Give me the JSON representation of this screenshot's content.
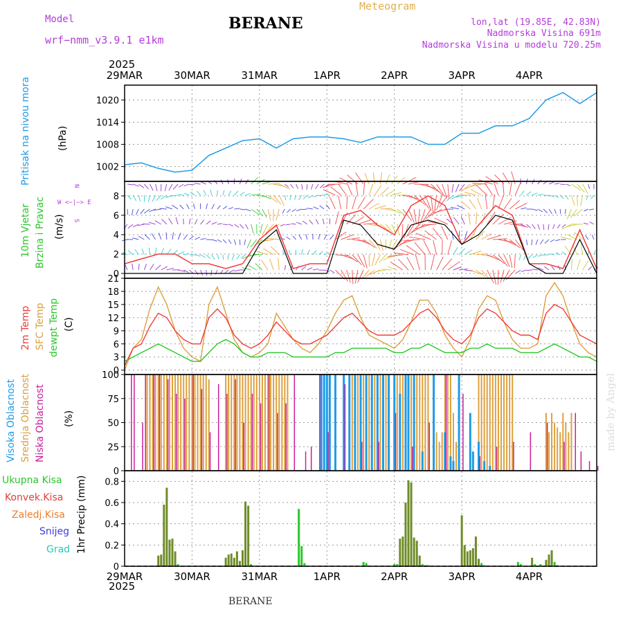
{
  "header": {
    "model_label": "Model",
    "model_name": "wrf−nmm_v3.9.1  e1km",
    "station": "BERANE",
    "meteogram_label": "Meteogram",
    "coords": "lon,lat (19.85E, 42.83N)",
    "elevation": "Nadmorska Visina 691m",
    "model_elevation": "Nadmorska Visina u modelu 720.25m",
    "year_top": "2025",
    "year_bottom": "2025",
    "footer_station": "BERANE",
    "credit": "made by Angel"
  },
  "colors": {
    "pressure": "#1e9be6",
    "t2m": "#f03c3c",
    "tsfc": "#dca03c",
    "dewpt": "#28c828",
    "cloud_high": "#1e9be6",
    "cloud_mid": "#dca03c",
    "cloud_low": "#c81e9b",
    "precip_total": "#28c828",
    "precip_conv": "#e03c3c",
    "precip_frozen": "#f07c28",
    "snow": "#3c3cdc",
    "hail": "#28c8b4",
    "wind_speed": "#000000",
    "wind_gust": "#f03c3c",
    "label_purple": "#b43cdc"
  },
  "panels": {
    "pressure": {
      "labels": [
        "Pritisak na nivou mora"
      ],
      "unit": "(hPa)"
    },
    "wind": {
      "labels": [
        "10m Vjetar",
        "Brzina i Pravac"
      ],
      "unit": "(m/s)",
      "compass_top": "N",
      "compass_mid": "W  <−|−>  E",
      "compass_bottom": "S"
    },
    "temp": {
      "labels": [
        "2m Temp",
        "SFC Temp",
        "dewpt Temp"
      ],
      "unit": "(C)"
    },
    "cloud": {
      "labels": [
        "Visoka Oblacnost",
        "Srednja Oblacnost",
        "Niska Oblacnost"
      ],
      "unit": "(%)"
    },
    "precip": {
      "labels": [
        "Ukupna Kisa",
        "Konvek.Kisa",
        "Zaledj.Kisa",
        "Snijeg",
        "Grad"
      ],
      "unit": "1hr Precip (mm)"
    }
  },
  "chart_data": {
    "type": "line",
    "x_dates": [
      "29MAR",
      "30MAR",
      "31MAR",
      "1APR",
      "2APR",
      "3APR",
      "4APR"
    ],
    "x_unit": "hours from 29MAR 00UTC",
    "pressure": {
      "yticks": [
        1002,
        1008,
        1014,
        1020
      ],
      "ylim": [
        998,
        1024
      ],
      "x": [
        0,
        6,
        12,
        18,
        24,
        30,
        36,
        42,
        48,
        54,
        60,
        66,
        72,
        78,
        84,
        90,
        96,
        102,
        108,
        114,
        120,
        126,
        132,
        138,
        144,
        150,
        156,
        162,
        168
      ],
      "values": [
        1002.5,
        1003,
        1001.5,
        1000.5,
        1001,
        1005,
        1007,
        1009,
        1009.5,
        1007,
        1009.5,
        1010,
        1010,
        1009.5,
        1008.5,
        1010,
        1010,
        1010,
        1008,
        1008,
        1011,
        1011,
        1013,
        1013,
        1015,
        1020,
        1022,
        1019,
        1022
      ]
    },
    "wind": {
      "yticks": [
        0,
        2,
        4,
        6,
        8
      ],
      "ylim": [
        -0.5,
        9.5
      ],
      "x": [
        0,
        6,
        12,
        18,
        24,
        30,
        36,
        42,
        48,
        54,
        60,
        66,
        72,
        78,
        84,
        90,
        96,
        102,
        108,
        114,
        120,
        126,
        132,
        138,
        144,
        150,
        156,
        162,
        168
      ],
      "speed": [
        0,
        0,
        0,
        0,
        0,
        0,
        0,
        0,
        3,
        4.5,
        0,
        0,
        0,
        5.5,
        5,
        3,
        2.5,
        5,
        5.5,
        5,
        3,
        4,
        6,
        5.5,
        1,
        0,
        0,
        3.5,
        0
      ],
      "gust": [
        1,
        1.5,
        2,
        2,
        1,
        1,
        0.5,
        1,
        3.5,
        5,
        0.5,
        1,
        1,
        6,
        6.5,
        5,
        4,
        7,
        8,
        7,
        3,
        5,
        7,
        6,
        1,
        1,
        0.5,
        4.5,
        0.5
      ]
    },
    "temp": {
      "yticks": [
        0,
        3,
        6,
        9,
        12,
        15,
        18,
        21
      ],
      "ylim": [
        -1,
        21
      ],
      "x": [
        0,
        3,
        6,
        9,
        12,
        15,
        18,
        21,
        24,
        27,
        30,
        33,
        36,
        39,
        42,
        45,
        48,
        51,
        54,
        57,
        60,
        63,
        66,
        69,
        72,
        75,
        78,
        81,
        84,
        87,
        90,
        93,
        96,
        99,
        102,
        105,
        108,
        111,
        114,
        117,
        120,
        123,
        126,
        129,
        132,
        135,
        138,
        141,
        144,
        147,
        150,
        153,
        156,
        159,
        162,
        165,
        168
      ],
      "t2m": [
        1,
        5,
        6,
        10,
        13,
        12,
        9,
        7,
        6,
        6,
        12,
        14,
        12,
        8,
        6,
        5,
        6,
        8,
        11,
        9,
        7,
        6,
        6,
        7,
        8,
        10,
        12,
        13,
        11,
        9,
        8,
        8,
        8,
        9,
        11,
        13,
        14,
        12,
        9,
        7,
        6,
        8,
        12,
        14,
        13,
        11,
        9,
        8,
        8,
        7,
        13,
        15,
        14,
        11,
        8,
        7,
        6
      ],
      "sfc": [
        0,
        5,
        7,
        14,
        19,
        15,
        9,
        5,
        3,
        2,
        15,
        19,
        13,
        7,
        4,
        3,
        4,
        6,
        13,
        10,
        7,
        5,
        4,
        6,
        9,
        13,
        16,
        17,
        12,
        8,
        7,
        6,
        5,
        7,
        11,
        16,
        16,
        13,
        8,
        5,
        3,
        7,
        14,
        17,
        16,
        11,
        7,
        5,
        5,
        6,
        17,
        20,
        17,
        11,
        6,
        4,
        3
      ],
      "dewpt": [
        2,
        3,
        4,
        5,
        6,
        5,
        4,
        3,
        2,
        2,
        4,
        6,
        7,
        6,
        4,
        3,
        3,
        4,
        4,
        4,
        3,
        3,
        3,
        3,
        3,
        4,
        4,
        5,
        5,
        5,
        5,
        5,
        4,
        4,
        5,
        5,
        6,
        5,
        4,
        4,
        4,
        5,
        5,
        6,
        5,
        5,
        5,
        4,
        4,
        4,
        5,
        6,
        5,
        4,
        3,
        3,
        2
      ]
    },
    "cloud": {
      "yticks": [
        0,
        25,
        50,
        75,
        100
      ],
      "ylim": [
        0,
        100
      ],
      "low_x": [
        2,
        3,
        6,
        7,
        10,
        12,
        15,
        18,
        21,
        24,
        27,
        30,
        33,
        36,
        39,
        42,
        45,
        48,
        51,
        54,
        57,
        60,
        64,
        66,
        69,
        72,
        78,
        84,
        90,
        96,
        102,
        108,
        114,
        120,
        126,
        132,
        138,
        144,
        150,
        156,
        160,
        162,
        165,
        168
      ],
      "low_v": [
        100,
        100,
        50,
        100,
        100,
        100,
        95,
        80,
        75,
        100,
        85,
        40,
        90,
        80,
        95,
        50,
        80,
        70,
        100,
        60,
        70,
        100,
        20,
        25,
        100,
        40,
        90,
        30,
        30,
        60,
        25,
        50,
        100,
        80,
        15,
        25,
        30,
        40,
        50,
        30,
        60,
        20,
        10,
        5
      ],
      "mid_x": [
        8,
        9,
        10,
        11,
        12,
        13,
        14,
        15,
        16,
        17,
        18,
        19,
        20,
        21,
        22,
        23,
        24,
        25,
        26,
        27,
        28,
        29,
        30,
        36,
        37,
        38,
        39,
        40,
        41,
        42,
        43,
        44,
        45,
        46,
        47,
        48,
        49,
        50,
        51,
        52,
        53,
        54,
        55,
        56,
        57,
        58,
        80,
        81,
        82,
        83,
        84,
        85,
        86,
        87,
        88,
        89,
        90,
        91,
        92,
        93,
        94,
        97,
        98,
        99,
        100,
        101,
        102,
        103,
        104,
        105,
        106,
        107,
        108,
        111,
        112,
        113,
        114,
        115,
        116,
        117,
        118,
        126,
        127,
        128,
        129,
        130,
        131,
        132,
        133,
        134,
        135,
        136,
        137,
        138,
        150,
        151,
        152,
        153,
        154,
        155,
        156,
        157,
        158,
        159
      ],
      "mid_v": [
        100,
        100,
        100,
        100,
        100,
        100,
        100,
        100,
        100,
        100,
        100,
        100,
        100,
        100,
        100,
        100,
        100,
        100,
        100,
        100,
        100,
        100,
        95,
        100,
        100,
        100,
        100,
        100,
        100,
        100,
        100,
        100,
        100,
        100,
        100,
        100,
        100,
        100,
        100,
        100,
        100,
        100,
        100,
        100,
        100,
        100,
        100,
        100,
        100,
        100,
        100,
        100,
        100,
        100,
        100,
        100,
        100,
        100,
        100,
        100,
        100,
        100,
        100,
        100,
        100,
        100,
        100,
        100,
        100,
        100,
        100,
        100,
        100,
        40,
        30,
        40,
        100,
        100,
        100,
        60,
        30,
        100,
        100,
        100,
        100,
        100,
        100,
        100,
        100,
        100,
        100,
        100,
        100,
        100,
        60,
        40,
        60,
        50,
        45,
        40,
        60,
        50,
        40,
        60
      ],
      "high_x": [
        70,
        71,
        72,
        73,
        75,
        78,
        80,
        82,
        84,
        86,
        88,
        90,
        92,
        94,
        96,
        98,
        100,
        101,
        103,
        106,
        110,
        114,
        116,
        117,
        119,
        123,
        124,
        126,
        128,
        130
      ],
      "high_v": [
        100,
        100,
        100,
        100,
        100,
        100,
        100,
        100,
        100,
        100,
        100,
        100,
        100,
        100,
        100,
        80,
        100,
        100,
        100,
        20,
        100,
        40,
        15,
        10,
        100,
        60,
        20,
        30,
        10,
        5
      ]
    },
    "precip": {
      "yticks": [
        0,
        0.2,
        0.4,
        0.6,
        0.8
      ],
      "ylim": [
        0,
        0.9
      ],
      "x": [
        12,
        13,
        14,
        15,
        16,
        17,
        18,
        19,
        36,
        37,
        38,
        39,
        40,
        41,
        42,
        43,
        44,
        45,
        62,
        63,
        64,
        85,
        86,
        96,
        97,
        98,
        99,
        100,
        101,
        102,
        103,
        104,
        105,
        106,
        107,
        108,
        120,
        121,
        122,
        123,
        124,
        125,
        126,
        127,
        128,
        140,
        141,
        145,
        146,
        148,
        150,
        151,
        152,
        153,
        154
      ],
      "values": [
        0.1,
        0.11,
        0.58,
        0.74,
        0.25,
        0.26,
        0.14,
        0.02,
        0.08,
        0.11,
        0.12,
        0.08,
        0.14,
        0.05,
        0.15,
        0.61,
        0.57,
        0.02,
        0.54,
        0.19,
        0.03,
        0.04,
        0.03,
        0.02,
        0.02,
        0.26,
        0.28,
        0.6,
        0.81,
        0.79,
        0.27,
        0.24,
        0.1,
        0.02,
        0.01,
        0.01,
        0.48,
        0.2,
        0.14,
        0.15,
        0.17,
        0.28,
        0.07,
        0.03,
        0.01,
        0.04,
        0.02,
        0.08,
        0.02,
        0.02,
        0.06,
        0.11,
        0.15,
        0.04,
        0.01
      ]
    }
  }
}
